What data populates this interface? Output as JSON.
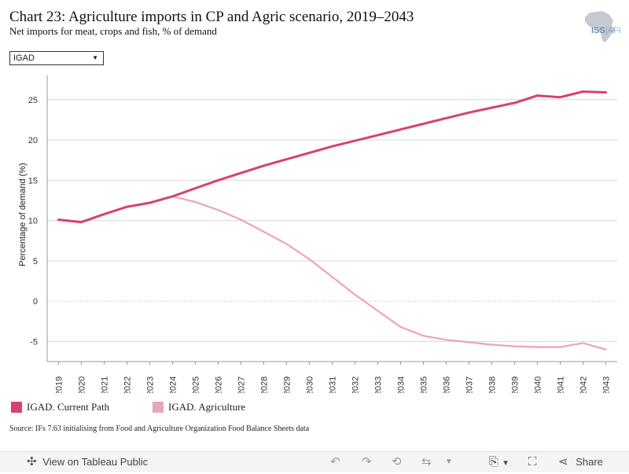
{
  "header": {
    "title": "Chart 23: Agriculture imports in CP and Agric scenario, 2019–2043",
    "subtitle": "Net imports for meat, crops and fish, % of demand",
    "logo_text": "ISS",
    "logo_text_suffix": "AFI"
  },
  "filter": {
    "selected": "IGAD"
  },
  "chart_data": {
    "type": "line",
    "title": "",
    "xlabel": "",
    "ylabel": "Percentage of demand (%)",
    "x": [
      "2019",
      "2020",
      "2021",
      "2022",
      "2023",
      "2024",
      "2025",
      "2026",
      "2027",
      "2028",
      "2029",
      "2030",
      "2031",
      "2032",
      "2033",
      "2034",
      "2035",
      "2036",
      "2037",
      "2038",
      "2039",
      "2040",
      "2041",
      "2042",
      "2043"
    ],
    "ylim": [
      -7.5,
      28
    ],
    "yticks": [
      25,
      20,
      15,
      10,
      5,
      0,
      -5
    ],
    "ytick_labels": [
      "25",
      "20",
      "15",
      "10",
      "5",
      "0",
      "-5"
    ],
    "grid": true,
    "series": [
      {
        "name": "IGAD. Current Path",
        "color": "#d6436b",
        "values": [
          10.1,
          9.8,
          10.8,
          11.7,
          12.2,
          13.0,
          14.0,
          15.0,
          15.9,
          16.8,
          17.6,
          18.4,
          19.2,
          19.9,
          20.6,
          21.3,
          22.0,
          22.7,
          23.4,
          24.0,
          24.6,
          25.5,
          25.3,
          26.0,
          25.9
        ]
      },
      {
        "name": "IGAD. Agriculture",
        "color": "#eba4bc",
        "values": [
          null,
          null,
          null,
          null,
          null,
          13.0,
          12.3,
          11.3,
          10.1,
          8.6,
          7.1,
          5.2,
          3.0,
          0.8,
          -1.2,
          -3.2,
          -4.3,
          -4.8,
          -5.1,
          -5.4,
          -5.6,
          -5.7,
          -5.7,
          -5.2,
          -6.0
        ]
      }
    ],
    "legend_position": "bottom-left",
    "legend": [
      "IGAD. Current Path",
      "IGAD. Agriculture"
    ]
  },
  "source": "Source: IFs 7.63 initialising from Food and Agriculture Organization Food Balance Sheets data",
  "footer": {
    "view_label": "View on Tableau Public",
    "share_label": "Share"
  }
}
